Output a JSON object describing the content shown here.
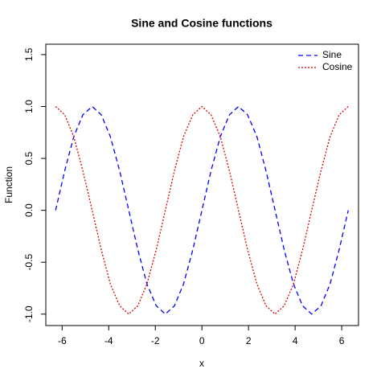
{
  "chart_data": {
    "type": "line",
    "title": "Sine and Cosine functions",
    "x_label": "x",
    "y_label": "Function",
    "x": [
      -6.28,
      -5.89,
      -5.5,
      -5.11,
      -4.71,
      -4.32,
      -3.93,
      -3.53,
      -3.14,
      -2.75,
      -2.36,
      -1.96,
      -1.57,
      -1.18,
      -0.79,
      -0.39,
      0,
      0.39,
      0.79,
      1.18,
      1.57,
      1.96,
      2.36,
      2.75,
      3.14,
      3.53,
      3.93,
      4.32,
      4.71,
      5.11,
      5.5,
      5.89,
      6.28
    ],
    "series": [
      {
        "name": "Sine",
        "color": "#0000ff",
        "dash": "6 4",
        "values": [
          0,
          0.38,
          0.71,
          0.92,
          1,
          0.92,
          0.71,
          0.38,
          0,
          -0.38,
          -0.71,
          -0.92,
          -1,
          -0.92,
          -0.71,
          -0.38,
          0,
          0.38,
          0.71,
          0.92,
          1,
          0.92,
          0.71,
          0.38,
          0,
          -0.38,
          -0.71,
          -0.92,
          -1,
          -0.92,
          -0.71,
          -0.38,
          0
        ]
      },
      {
        "name": "Cosine",
        "color": "#dd0000",
        "dash": "2 2",
        "values": [
          1,
          0.92,
          0.71,
          0.38,
          0,
          -0.38,
          -0.71,
          -0.92,
          -1,
          -0.92,
          -0.71,
          -0.38,
          0,
          0.38,
          0.71,
          0.92,
          1,
          0.92,
          0.71,
          0.38,
          0,
          -0.38,
          -0.71,
          -0.92,
          -1,
          -0.92,
          -0.71,
          -0.38,
          0,
          0.38,
          0.71,
          0.92,
          1
        ]
      }
    ],
    "xlim": [
      -6.7,
      6.72
    ],
    "xticks": [
      -6,
      -4,
      -2,
      0,
      2,
      4,
      6
    ],
    "ylim": [
      -1.11,
      1.6
    ],
    "yticks": [
      {
        "value": -1,
        "label": "-1.0"
      },
      {
        "value": -0.5,
        "label": "-0.5"
      },
      {
        "value": 0,
        "label": "0.0"
      },
      {
        "value": 0.5,
        "label": "0.5"
      },
      {
        "value": 1,
        "label": "1.0"
      },
      {
        "value": 1.5,
        "label": "1.5"
      }
    ],
    "legend": "top-right"
  }
}
